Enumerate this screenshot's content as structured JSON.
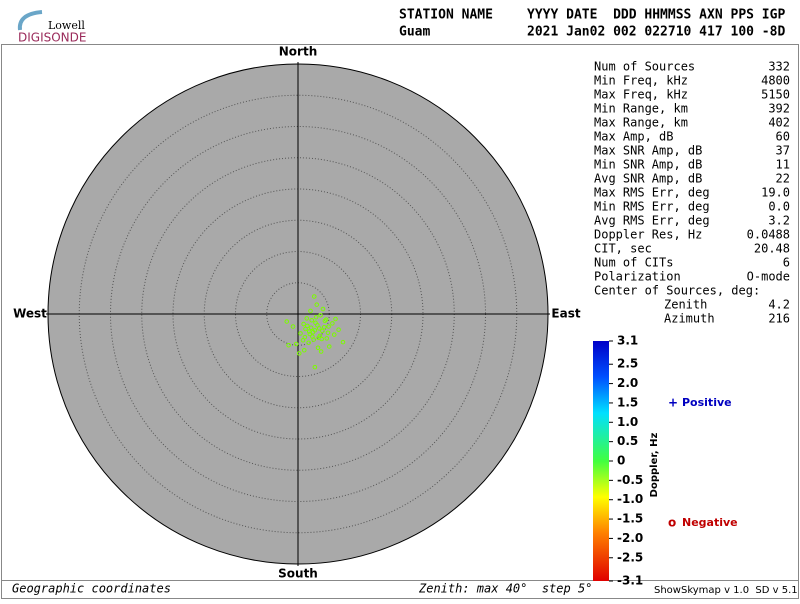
{
  "logo": {
    "top": "Lowell",
    "bottom": "DIGISONDE"
  },
  "header": {
    "row1": [
      "STATION NAME",
      "YYYY DATE  DDD HHMMSS AXN PPS IGP"
    ],
    "row2": [
      "Guam",
      "2021 Jan02 002 022710 417 100 -8D"
    ]
  },
  "stats": [
    {
      "label": "Num of Sources",
      "value": "332"
    },
    {
      "label": "Min Freq, kHz",
      "value": "4800"
    },
    {
      "label": "Max Freq, kHz",
      "value": "5150"
    },
    {
      "label": "Min Range, km",
      "value": "392"
    },
    {
      "label": "Max Range, km",
      "value": "402"
    },
    {
      "label": "Max Amp, dB",
      "value": "60"
    },
    {
      "label": "Max SNR Amp, dB",
      "value": "37"
    },
    {
      "label": "Min SNR Amp, dB",
      "value": "11"
    },
    {
      "label": "Avg SNR Amp, dB",
      "value": "22"
    },
    {
      "label": "Max RMS Err, deg",
      "value": "19.0"
    },
    {
      "label": "Min RMS Err, deg",
      "value": "0.0"
    },
    {
      "label": "Avg RMS Err, deg",
      "value": "3.2"
    },
    {
      "label": "Doppler Res, Hz",
      "value": "0.0488"
    },
    {
      "label": "CIT, sec",
      "value": "20.48"
    },
    {
      "label": "Num of CITs",
      "value": "6"
    },
    {
      "label": "Polarization",
      "value": "O-mode"
    }
  ],
  "center_label": "Center of Sources, deg:",
  "center": [
    {
      "label": "Zenith",
      "value": "4.2"
    },
    {
      "label": "Azimuth",
      "value": "216"
    }
  ],
  "chart_data": {
    "type": "scatter",
    "directions": {
      "north": "North",
      "south": "South",
      "east": "East",
      "west": "West"
    },
    "rlim": [
      0,
      40
    ],
    "rticks": [
      5,
      10,
      15,
      20,
      25,
      30,
      35
    ],
    "color": "#7cfc00",
    "x": [
      2.7,
      3.1,
      1.9,
      4.2,
      2.2,
      3.5,
      1.2,
      0.8,
      4.8,
      5.5,
      2.9,
      3.8,
      1.5,
      2.4,
      3.3,
      4.5,
      0.4,
      -0.8,
      -1.5,
      6.5,
      7.2,
      2.0,
      3.0,
      4.0,
      1.0,
      5.0,
      2.6,
      3.6,
      1.7,
      2.3,
      -1.8,
      0.2,
      6.0,
      3.9,
      2.8,
      4.6,
      1.4,
      3.2,
      2.1,
      5.8,
      0.9,
      3.4,
      2.5,
      4.3,
      1.1,
      -0.3,
      2.7,
      3.7,
      1.8,
      4.9
    ],
    "y": [
      -2.6,
      -1.8,
      -3.2,
      -2.1,
      -1.0,
      -3.5,
      -2.4,
      -4.2,
      -3.0,
      -1.5,
      -0.5,
      -4.0,
      -1.9,
      -2.9,
      -3.8,
      -0.9,
      -3.1,
      -2.0,
      -5.0,
      -2.5,
      -4.5,
      0.5,
      1.5,
      0.8,
      -5.8,
      -5.2,
      2.8,
      -0.2,
      -4.6,
      -3.6,
      -1.2,
      -6.3,
      -0.8,
      -2.7,
      -1.4,
      -3.9,
      -0.7,
      -5.4,
      -2.2,
      -3.3,
      -1.6,
      -2.3,
      -4.1,
      -1.1,
      -3.7,
      -4.8,
      -8.5,
      -6.0,
      -2.8,
      -2.0
    ]
  },
  "colorbar": {
    "label": "Doppler, Hz",
    "lim": [
      -3.1,
      3.1
    ],
    "ticks": [
      3.1,
      2.5,
      {
        "value": 2,
        "label": "2.0"
      },
      1.5,
      {
        "value": 1,
        "label": "1.0"
      },
      0.5,
      0,
      -0.5,
      {
        "value": -1,
        "label": "-1.0"
      },
      -1.5,
      {
        "value": -2,
        "label": "-2.0"
      },
      -2.5,
      -3.1
    ],
    "positive_symbol": "+",
    "positive": "Positive",
    "negative_symbol": "o",
    "negative": "Negative"
  },
  "footer": {
    "left": "Geographic coordinates",
    "middle": "Zenith: max 40°  step 5°",
    "right": "ShowSkymap v 1.0  SD v 5.1"
  }
}
